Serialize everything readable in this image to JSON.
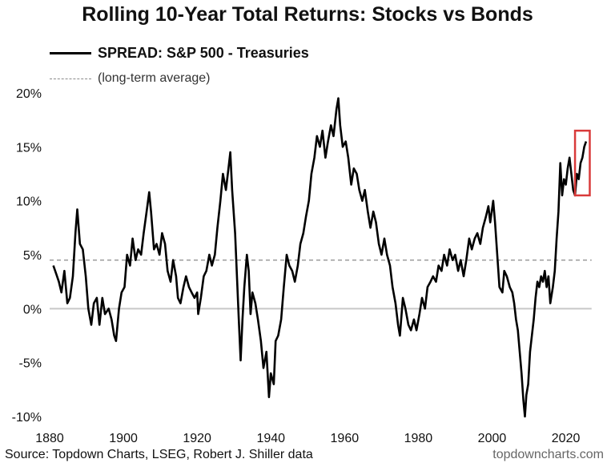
{
  "chart_data": {
    "type": "line",
    "title": "Rolling 10-Year Total Returns: Stocks vs Bonds",
    "xlabel": "",
    "ylabel": "",
    "xlim": [
      1880,
      2029
    ],
    "ylim": [
      -10,
      20
    ],
    "x_ticks": [
      1880,
      1900,
      1920,
      1940,
      1960,
      1980,
      2000,
      2020
    ],
    "x_tick_labels": [
      "1880",
      "1900",
      "1920",
      "1940",
      "1960",
      "1980",
      "2000",
      "2020"
    ],
    "y_ticks": [
      20,
      15,
      10,
      5,
      0,
      -5,
      -10
    ],
    "y_tick_labels": [
      "20%",
      "15%",
      "10%",
      "5%",
      "0%",
      "-5%",
      "-10%"
    ],
    "grid": false,
    "legend": "top-left",
    "series": [
      {
        "name": "SPREAD: S&P 500 - Treasuries",
        "color": "#000000",
        "points": [
          [
            1881.0,
            4.0
          ],
          [
            1881.8,
            3.2
          ],
          [
            1882.5,
            2.5
          ],
          [
            1883.2,
            1.5
          ],
          [
            1884.0,
            3.5
          ],
          [
            1884.8,
            0.5
          ],
          [
            1885.5,
            1.0
          ],
          [
            1886.3,
            3.0
          ],
          [
            1887.0,
            7.0
          ],
          [
            1887.5,
            9.2
          ],
          [
            1888.2,
            6.0
          ],
          [
            1889.0,
            5.5
          ],
          [
            1889.8,
            3.0
          ],
          [
            1890.5,
            0.0
          ],
          [
            1891.3,
            -1.5
          ],
          [
            1892.0,
            0.5
          ],
          [
            1892.8,
            1.0
          ],
          [
            1893.5,
            -1.5
          ],
          [
            1894.3,
            1.0
          ],
          [
            1895.0,
            -0.5
          ],
          [
            1896.0,
            0.0
          ],
          [
            1896.8,
            -1.0
          ],
          [
            1897.5,
            -2.5
          ],
          [
            1898.0,
            -3.0
          ],
          [
            1898.8,
            0.0
          ],
          [
            1899.5,
            1.5
          ],
          [
            1900.3,
            2.0
          ],
          [
            1901.0,
            5.0
          ],
          [
            1901.8,
            4.0
          ],
          [
            1902.5,
            6.5
          ],
          [
            1903.3,
            4.5
          ],
          [
            1904.0,
            5.5
          ],
          [
            1904.8,
            5.0
          ],
          [
            1905.5,
            7.0
          ],
          [
            1906.3,
            9.0
          ],
          [
            1907.0,
            10.8
          ],
          [
            1907.5,
            9.0
          ],
          [
            1908.3,
            5.5
          ],
          [
            1909.0,
            6.0
          ],
          [
            1909.8,
            5.0
          ],
          [
            1910.5,
            7.0
          ],
          [
            1911.3,
            6.0
          ],
          [
            1912.0,
            3.5
          ],
          [
            1912.8,
            2.5
          ],
          [
            1913.5,
            4.5
          ],
          [
            1914.3,
            3.0
          ],
          [
            1914.8,
            1.0
          ],
          [
            1915.5,
            0.5
          ],
          [
            1916.3,
            2.0
          ],
          [
            1917.0,
            3.0
          ],
          [
            1917.8,
            2.0
          ],
          [
            1918.5,
            1.5
          ],
          [
            1919.3,
            1.0
          ],
          [
            1920.0,
            1.5
          ],
          [
            1920.3,
            -0.5
          ],
          [
            1921.0,
            1.0
          ],
          [
            1921.8,
            3.0
          ],
          [
            1922.5,
            3.5
          ],
          [
            1923.3,
            5.0
          ],
          [
            1924.0,
            4.0
          ],
          [
            1924.8,
            5.0
          ],
          [
            1925.5,
            7.5
          ],
          [
            1926.3,
            10.0
          ],
          [
            1927.0,
            12.5
          ],
          [
            1927.8,
            11.0
          ],
          [
            1928.5,
            13.0
          ],
          [
            1929.0,
            14.5
          ],
          [
            1929.5,
            11.0
          ],
          [
            1930.3,
            7.0
          ],
          [
            1930.8,
            3.0
          ],
          [
            1931.3,
            -1.0
          ],
          [
            1931.8,
            -4.8
          ],
          [
            1932.3,
            -1.0
          ],
          [
            1932.8,
            2.0
          ],
          [
            1933.5,
            5.0
          ],
          [
            1934.0,
            3.5
          ],
          [
            1934.5,
            -0.5
          ],
          [
            1935.0,
            1.5
          ],
          [
            1935.8,
            0.5
          ],
          [
            1936.5,
            -1.0
          ],
          [
            1937.3,
            -3.0
          ],
          [
            1938.0,
            -5.5
          ],
          [
            1938.8,
            -4.0
          ],
          [
            1939.5,
            -8.2
          ],
          [
            1940.0,
            -6.0
          ],
          [
            1940.8,
            -7.0
          ],
          [
            1941.3,
            -3.0
          ],
          [
            1942.0,
            -2.5
          ],
          [
            1942.8,
            -1.0
          ],
          [
            1943.5,
            2.0
          ],
          [
            1944.3,
            5.0
          ],
          [
            1945.0,
            4.0
          ],
          [
            1945.8,
            3.5
          ],
          [
            1946.5,
            2.5
          ],
          [
            1947.3,
            4.0
          ],
          [
            1948.0,
            6.0
          ],
          [
            1948.8,
            7.0
          ],
          [
            1949.5,
            8.5
          ],
          [
            1950.3,
            10.0
          ],
          [
            1951.0,
            12.5
          ],
          [
            1951.8,
            14.0
          ],
          [
            1952.5,
            16.0
          ],
          [
            1953.3,
            15.0
          ],
          [
            1954.0,
            16.5
          ],
          [
            1954.8,
            14.0
          ],
          [
            1955.5,
            15.5
          ],
          [
            1956.3,
            17.0
          ],
          [
            1957.0,
            16.0
          ],
          [
            1957.8,
            18.5
          ],
          [
            1958.3,
            19.5
          ],
          [
            1958.8,
            17.0
          ],
          [
            1959.5,
            15.0
          ],
          [
            1960.3,
            15.5
          ],
          [
            1961.0,
            14.0
          ],
          [
            1961.8,
            11.5
          ],
          [
            1962.5,
            13.0
          ],
          [
            1963.3,
            12.5
          ],
          [
            1964.0,
            11.0
          ],
          [
            1964.8,
            10.0
          ],
          [
            1965.5,
            11.0
          ],
          [
            1966.3,
            9.0
          ],
          [
            1967.0,
            7.5
          ],
          [
            1967.8,
            9.0
          ],
          [
            1968.5,
            8.0
          ],
          [
            1969.3,
            6.0
          ],
          [
            1970.0,
            5.0
          ],
          [
            1970.8,
            6.5
          ],
          [
            1971.5,
            5.0
          ],
          [
            1972.3,
            4.0
          ],
          [
            1973.0,
            2.0
          ],
          [
            1973.8,
            0.5
          ],
          [
            1974.5,
            -1.5
          ],
          [
            1975.0,
            -2.5
          ],
          [
            1975.8,
            1.0
          ],
          [
            1976.5,
            0.0
          ],
          [
            1977.3,
            -1.5
          ],
          [
            1978.0,
            -2.0
          ],
          [
            1978.8,
            -1.0
          ],
          [
            1979.5,
            -2.0
          ],
          [
            1980.3,
            -0.5
          ],
          [
            1981.0,
            1.0
          ],
          [
            1981.8,
            0.0
          ],
          [
            1982.5,
            2.0
          ],
          [
            1983.3,
            2.5
          ],
          [
            1984.0,
            3.0
          ],
          [
            1984.8,
            2.5
          ],
          [
            1985.5,
            4.0
          ],
          [
            1986.3,
            3.5
          ],
          [
            1987.0,
            5.0
          ],
          [
            1987.8,
            4.0
          ],
          [
            1988.5,
            5.5
          ],
          [
            1989.3,
            4.5
          ],
          [
            1990.0,
            5.0
          ],
          [
            1990.8,
            3.5
          ],
          [
            1991.5,
            4.5
          ],
          [
            1992.3,
            3.0
          ],
          [
            1993.0,
            4.5
          ],
          [
            1993.8,
            6.5
          ],
          [
            1994.5,
            5.5
          ],
          [
            1995.3,
            6.5
          ],
          [
            1996.0,
            7.0
          ],
          [
            1996.8,
            6.0
          ],
          [
            1997.5,
            7.5
          ],
          [
            1998.3,
            8.5
          ],
          [
            1999.0,
            9.5
          ],
          [
            1999.5,
            8.0
          ],
          [
            2000.3,
            10.0
          ],
          [
            2000.8,
            8.0
          ],
          [
            2001.5,
            4.5
          ],
          [
            2002.0,
            2.0
          ],
          [
            2002.8,
            1.5
          ],
          [
            2003.3,
            3.5
          ],
          [
            2004.0,
            3.0
          ],
          [
            2004.8,
            2.0
          ],
          [
            2005.5,
            1.5
          ],
          [
            2006.0,
            0.5
          ],
          [
            2006.5,
            -1.0
          ],
          [
            2007.0,
            -2.0
          ],
          [
            2007.5,
            -4.0
          ],
          [
            2008.0,
            -6.0
          ],
          [
            2008.5,
            -8.5
          ],
          [
            2008.9,
            -10.0
          ],
          [
            2009.3,
            -8.0
          ],
          [
            2009.8,
            -7.0
          ],
          [
            2010.3,
            -4.0
          ],
          [
            2010.8,
            -2.5
          ],
          [
            2011.3,
            -1.0
          ],
          [
            2011.8,
            1.0
          ],
          [
            2012.3,
            2.5
          ],
          [
            2012.8,
            2.0
          ],
          [
            2013.3,
            3.0
          ],
          [
            2013.8,
            2.5
          ],
          [
            2014.3,
            3.5
          ],
          [
            2014.8,
            2.0
          ],
          [
            2015.3,
            3.0
          ],
          [
            2015.8,
            0.5
          ],
          [
            2016.5,
            2.0
          ],
          [
            2017.0,
            3.5
          ],
          [
            2017.5,
            6.5
          ],
          [
            2018.0,
            9.0
          ],
          [
            2018.5,
            13.5
          ],
          [
            2019.0,
            10.5
          ],
          [
            2019.5,
            12.0
          ],
          [
            2020.0,
            11.5
          ],
          [
            2020.5,
            13.0
          ],
          [
            2021.0,
            14.0
          ],
          [
            2021.5,
            12.5
          ],
          [
            2022.0,
            11.0
          ],
          [
            2022.5,
            10.5
          ],
          [
            2023.0,
            12.5
          ],
          [
            2023.5,
            12.0
          ],
          [
            2024.0,
            13.5
          ],
          [
            2024.5,
            14.0
          ],
          [
            2025.0,
            15.0
          ],
          [
            2025.5,
            15.5
          ]
        ]
      },
      {
        "name": "(long-term average)",
        "color": "#8a8a8a",
        "style": "dashed",
        "points": [
          [
            1880,
            4.5
          ],
          [
            2029,
            4.5
          ]
        ]
      }
    ],
    "annotations": [
      {
        "type": "highlight-box",
        "color": "#d93a3a",
        "x_range": [
          2022.5,
          2026.5
        ],
        "y_range": [
          10.5,
          16.5
        ]
      }
    ]
  },
  "legend": {
    "spread_label": "SPREAD: S&P 500 - Treasuries",
    "avg_label": "(long-term average)"
  },
  "footer": {
    "source": "Source: Topdown Charts, LSEG, Robert J. Shiller data",
    "site": "topdowncharts.com"
  }
}
